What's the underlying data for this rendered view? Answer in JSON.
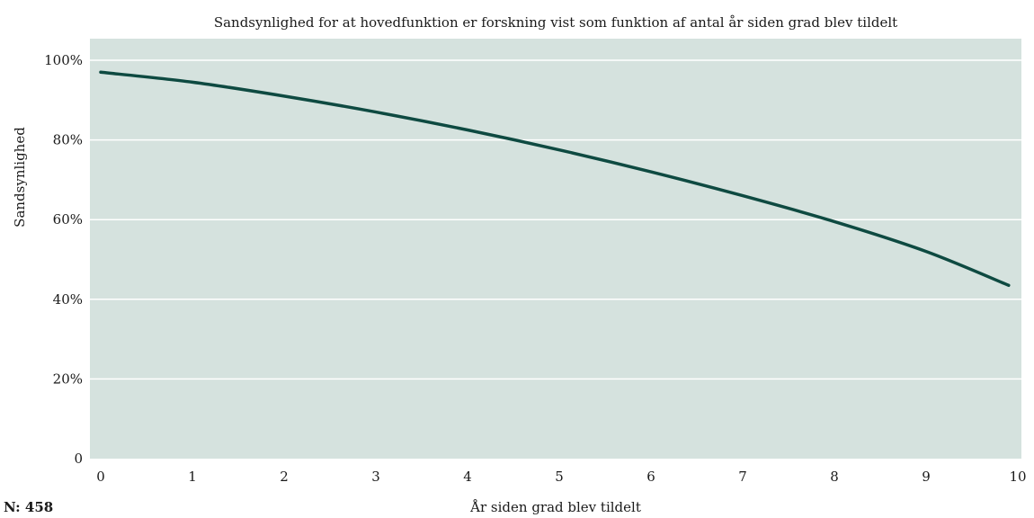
{
  "chart_data": {
    "type": "line",
    "title": "Sandsynlighed for at hovedfunktion er forskning vist som funktion af antal år siden grad blev tildelt",
    "xlabel": "År siden grad blev tildelt",
    "ylabel": "Sandsynlighed",
    "xlim": [
      0,
      10
    ],
    "ylim": [
      0,
      100
    ],
    "x_ticks": [
      "0",
      "1",
      "2",
      "3",
      "4",
      "5",
      "6",
      "7",
      "8",
      "9",
      "10"
    ],
    "y_ticks": [
      {
        "value": 0,
        "label": "0"
      },
      {
        "value": 20,
        "label": "20%"
      },
      {
        "value": 40,
        "label": "40%"
      },
      {
        "value": 60,
        "label": "60%"
      },
      {
        "value": 80,
        "label": "80%"
      },
      {
        "value": 100,
        "label": "100%"
      }
    ],
    "grid": true,
    "series": [
      {
        "x": [
          0,
          1,
          2,
          3,
          4,
          5,
          6,
          7,
          8,
          9,
          9.9
        ],
        "y": [
          97,
          94.5,
          91,
          87,
          82.5,
          77.5,
          72,
          66,
          59.5,
          52,
          43.5
        ]
      }
    ],
    "colors": {
      "plot_background": "#d5e2de",
      "grid": "#ffffff",
      "line": "#0e4a41"
    }
  },
  "sample_size": "N: 458"
}
